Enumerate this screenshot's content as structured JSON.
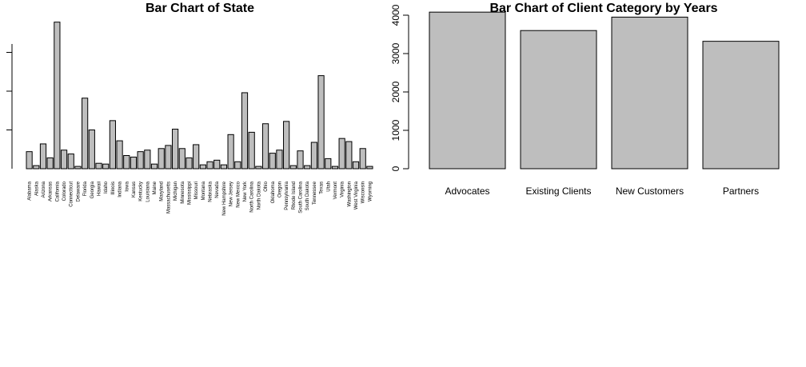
{
  "chart_data": [
    {
      "type": "bar",
      "title": "Bar Chart of State",
      "xlabel": "",
      "ylabel": "",
      "ylim": [
        0,
        200
      ],
      "ytick_labels_visible": false,
      "bar_color": "#bebebe",
      "categories": [
        "Alabama",
        "Alaska",
        "Arizona",
        "Arkansas",
        "California",
        "Colorado",
        "Connecticut",
        "Delaware",
        "Florida",
        "Georgia",
        "Hawaii",
        "Idaho",
        "Illinois",
        "Indiana",
        "Iowa",
        "Kansas",
        "Kentucky",
        "Louisiana",
        "Maine",
        "Maryland",
        "Massachusetts",
        "Michigan",
        "Minnesota",
        "Mississippi",
        "Missouri",
        "Montana",
        "Nebraska",
        "Nevada",
        "New Hampshire",
        "New Jersey",
        "New Mexico",
        "New York",
        "North Carolina",
        "North Dakota",
        "Ohio",
        "Oklahoma",
        "Oregon",
        "Pennsylvania",
        "Rhode Island",
        "South Carolina",
        "South Dakota",
        "Tennessee",
        "Texas",
        "Utah",
        "Vermont",
        "Virginia",
        "Washington",
        "West Virginia",
        "Wisconsin",
        "Wyoming"
      ],
      "values": [
        22,
        4,
        32,
        14,
        189,
        24,
        19,
        3,
        91,
        50,
        7,
        6,
        62,
        36,
        17,
        15,
        22,
        24,
        6,
        26,
        30,
        51,
        26,
        14,
        31,
        5,
        9,
        11,
        5,
        44,
        9,
        98,
        47,
        3,
        58,
        20,
        24,
        61,
        4,
        23,
        4,
        34,
        120,
        13,
        3,
        39,
        35,
        9,
        26,
        3
      ]
    },
    {
      "type": "bar",
      "title": "Bar Chart of Client Category by Years",
      "xlabel": "",
      "ylabel": "",
      "ylim": [
        0,
        4000
      ],
      "yticks": [
        "0",
        "1000",
        "2000",
        "3000",
        "4000"
      ],
      "bar_color": "#bebebe",
      "categories": [
        "Advocates",
        "Existing Clients",
        "New Customers",
        "Partners"
      ],
      "values": [
        4080,
        3600,
        3950,
        3320
      ]
    }
  ]
}
